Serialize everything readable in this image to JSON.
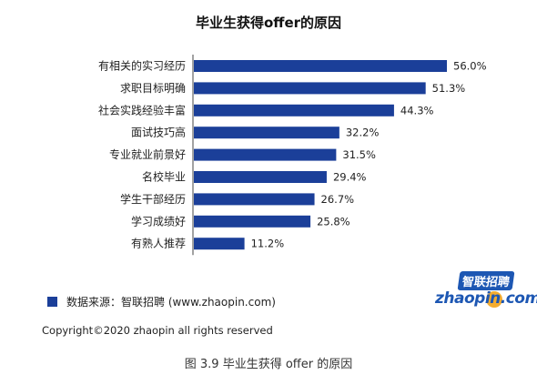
{
  "chart_data": {
    "type": "bar",
    "orientation": "horizontal",
    "title": "毕业生获得offer的原因",
    "categories": [
      "有相关的实习经历",
      "求职目标明确",
      "社会实践经验丰富",
      "面试技巧高",
      "专业就业前景好",
      "名校毕业",
      "学生干部经历",
      "学习成绩好",
      "有熟人推荐"
    ],
    "values": [
      56.0,
      51.3,
      44.3,
      32.2,
      31.5,
      29.4,
      26.7,
      25.8,
      11.2
    ],
    "value_labels": [
      "56.0%",
      "51.3%",
      "44.3%",
      "32.2%",
      "31.5%",
      "29.4%",
      "26.7%",
      "25.8%",
      "11.2%"
    ],
    "unit": "%",
    "xlim": [
      0,
      60
    ],
    "grid": false,
    "bar_color": "#1b3f99",
    "legend": "bottom-left"
  },
  "legend_text": "数据来源：智联招聘 (www.zhaopin.com)",
  "copyright": "Copyright©2020 zhaopin all rights reserved",
  "caption": "图 3.9  毕业生获得 offer 的原因",
  "logo": {
    "cn": "智联招聘",
    "en": "zhaopin.com"
  }
}
